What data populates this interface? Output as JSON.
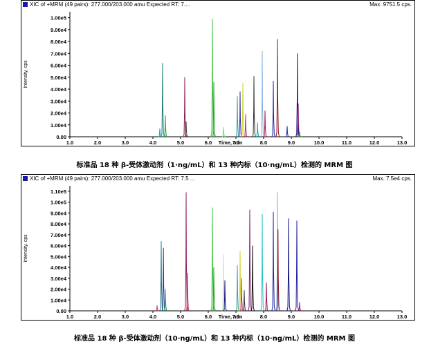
{
  "chart_data": [
    {
      "type": "line",
      "header": "XIC of +MRM (49 pairs): 277.000/203.000 amu Expected RT: 7....",
      "max_label": "Max. 9751.5 cps.",
      "ylabel": "Intensity, cps",
      "xlabel": "Time, min",
      "xlim": [
        1.0,
        13.0
      ],
      "ylim": [
        0,
        10500
      ],
      "x_ticks": [
        "1.0",
        "2.0",
        "3.0",
        "4.0",
        "5.0",
        "6.0",
        "7.0",
        "8.0",
        "9.0",
        "10.0",
        "11.0",
        "12.0",
        "13.0"
      ],
      "y_ticks": [
        {
          "value": 0,
          "label": "0.00"
        },
        {
          "value": 1000,
          "label": "1.00e4"
        },
        {
          "value": 2000,
          "label": "2.00e4"
        },
        {
          "value": 3000,
          "label": "3.00e4"
        },
        {
          "value": 4000,
          "label": "4.00e4"
        },
        {
          "value": 5000,
          "label": "5.00e4"
        },
        {
          "value": 6000,
          "label": "6.00e4"
        },
        {
          "value": 7000,
          "label": "7.00e4"
        },
        {
          "value": 8000,
          "label": "8.00e4"
        },
        {
          "value": 9000,
          "label": "9.00e4"
        },
        {
          "value": 10000,
          "label": "1.00e5"
        }
      ],
      "peaks": [
        {
          "rt": 4.25,
          "height": 700,
          "color": "#1a9ab0"
        },
        {
          "rt": 4.35,
          "height": 6200,
          "color": "#1a7a7a"
        },
        {
          "rt": 4.45,
          "height": 1800,
          "color": "#20a040"
        },
        {
          "rt": 5.15,
          "height": 5000,
          "color": "#8a1a5a"
        },
        {
          "rt": 5.2,
          "height": 1300,
          "color": "#3a3a3a"
        },
        {
          "rt": 6.15,
          "height": 9900,
          "color": "#40c040"
        },
        {
          "rt": 6.2,
          "height": 4600,
          "color": "#20a020"
        },
        {
          "rt": 6.55,
          "height": 800,
          "color": "#80d080"
        },
        {
          "rt": 7.05,
          "height": 3400,
          "color": "#30a0a0"
        },
        {
          "rt": 7.15,
          "height": 3800,
          "color": "#2a2aa0"
        },
        {
          "rt": 7.25,
          "height": 4500,
          "color": "#d0d020"
        },
        {
          "rt": 7.35,
          "height": 1900,
          "color": "#c03060"
        },
        {
          "rt": 7.65,
          "height": 5100,
          "color": "#303030"
        },
        {
          "rt": 7.78,
          "height": 1200,
          "color": "#20a0a0"
        },
        {
          "rt": 7.95,
          "height": 7200,
          "color": "#80b0e0"
        },
        {
          "rt": 8.05,
          "height": 2200,
          "color": "#a01050"
        },
        {
          "rt": 8.35,
          "height": 4700,
          "color": "#2020a0"
        },
        {
          "rt": 8.5,
          "height": 8200,
          "color": "#901020"
        },
        {
          "rt": 8.85,
          "height": 900,
          "color": "#2020a0"
        },
        {
          "rt": 9.22,
          "height": 7000,
          "color": "#101080"
        },
        {
          "rt": 9.25,
          "height": 2800,
          "color": "#901070"
        },
        {
          "rt": 9.3,
          "height": 400,
          "color": "#20a020"
        }
      ]
    },
    {
      "type": "line",
      "header": "XIC of +MRM (49 pairs): 277.000/203.000 amu Expected RT: 7.5 ...",
      "max_label": "Max. 7.5e4 cps.",
      "ylabel": "Intensity, cps",
      "xlabel": "Time, min",
      "xlim": [
        1.0,
        13.0
      ],
      "ylim": [
        0,
        11500
      ],
      "x_ticks": [
        "1.0",
        "2.0",
        "3.0",
        "4.0",
        "5.0",
        "6.0",
        "7.0",
        "8.0",
        "9.0",
        "10.0",
        "11.0",
        "12.0",
        "13.0"
      ],
      "y_ticks": [
        {
          "value": 0,
          "label": "0.00"
        },
        {
          "value": 1000,
          "label": "1.00e4"
        },
        {
          "value": 2000,
          "label": "2.00e4"
        },
        {
          "value": 3000,
          "label": "3.00e4"
        },
        {
          "value": 4000,
          "label": "4.00e4"
        },
        {
          "value": 5000,
          "label": "5.00e4"
        },
        {
          "value": 6000,
          "label": "6.00e4"
        },
        {
          "value": 7000,
          "label": "7.00e4"
        },
        {
          "value": 8000,
          "label": "8.00e4"
        },
        {
          "value": 9000,
          "label": "9.00e4"
        },
        {
          "value": 10000,
          "label": "1.00e5"
        },
        {
          "value": 11000,
          "label": "1.10e5"
        }
      ],
      "peaks": [
        {
          "rt": 4.15,
          "height": 500,
          "color": "#c03060"
        },
        {
          "rt": 4.3,
          "height": 6400,
          "color": "#1a7a7a"
        },
        {
          "rt": 4.38,
          "height": 5800,
          "color": "#3030a0"
        },
        {
          "rt": 4.45,
          "height": 2000,
          "color": "#20a040"
        },
        {
          "rt": 5.2,
          "height": 10900,
          "color": "#8a1a5a"
        },
        {
          "rt": 5.25,
          "height": 3500,
          "color": "#c03060"
        },
        {
          "rt": 6.15,
          "height": 9500,
          "color": "#40c040"
        },
        {
          "rt": 6.2,
          "height": 4000,
          "color": "#20a020"
        },
        {
          "rt": 6.55,
          "height": 5200,
          "color": "#c0e0c0"
        },
        {
          "rt": 6.6,
          "height": 2800,
          "color": "#101080"
        },
        {
          "rt": 7.05,
          "height": 4200,
          "color": "#30a0a0"
        },
        {
          "rt": 7.15,
          "height": 5500,
          "color": "#d0d020"
        },
        {
          "rt": 7.2,
          "height": 3000,
          "color": "#c03060"
        },
        {
          "rt": 7.3,
          "height": 1900,
          "color": "#303030"
        },
        {
          "rt": 7.5,
          "height": 9300,
          "color": "#7a1a70"
        },
        {
          "rt": 7.6,
          "height": 6000,
          "color": "#101010"
        },
        {
          "rt": 7.95,
          "height": 8900,
          "color": "#20c0c0"
        },
        {
          "rt": 8.1,
          "height": 2600,
          "color": "#a01050"
        },
        {
          "rt": 8.35,
          "height": 9100,
          "color": "#2020a0"
        },
        {
          "rt": 8.5,
          "height": 10900,
          "color": "#80b0e0"
        },
        {
          "rt": 8.52,
          "height": 7500,
          "color": "#901020"
        },
        {
          "rt": 8.9,
          "height": 8500,
          "color": "#101080"
        },
        {
          "rt": 9.2,
          "height": 8300,
          "color": "#2020a0"
        },
        {
          "rt": 9.3,
          "height": 800,
          "color": "#a01050"
        }
      ]
    }
  ],
  "captions": [
    "标准品 18 种 β-受体激动剂（1·ng/mL）和 13 种内标（10·ng/mL）检测的 MRM 图",
    "标准品 18 种 β-受体激动剂（10·ng/mL）和 13 种内标（10·ng/mL）检测的 MRM 图"
  ]
}
